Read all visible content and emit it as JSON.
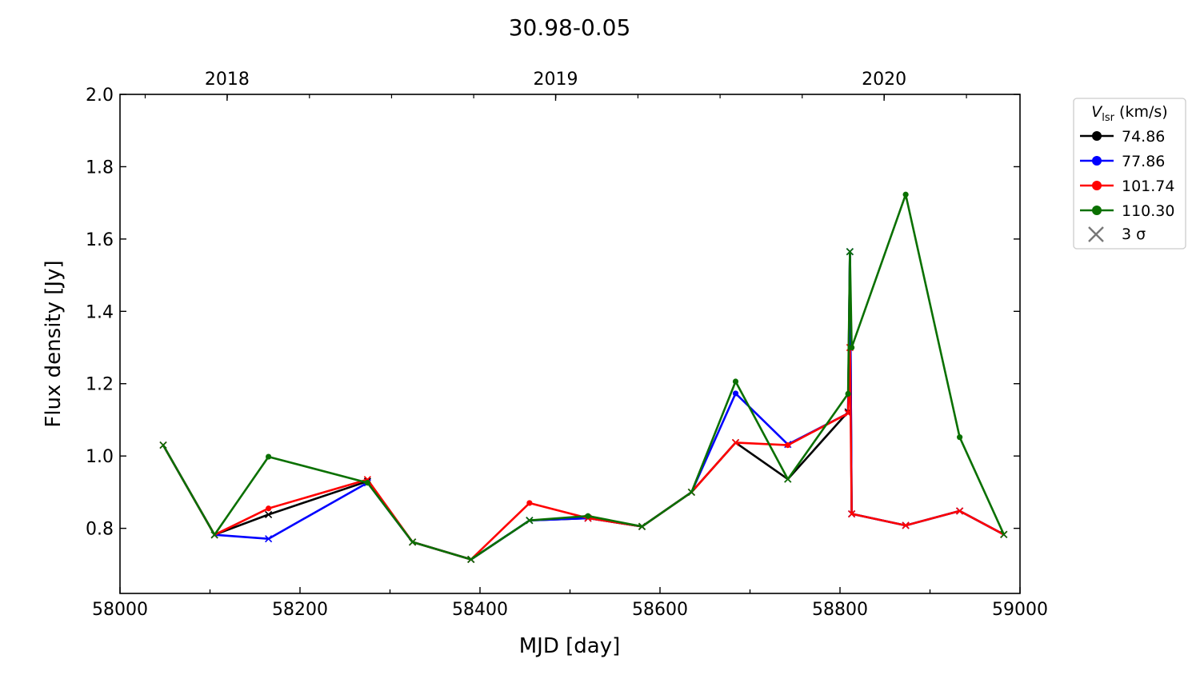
{
  "chart_data": {
    "type": "line",
    "title": "30.98-0.05",
    "xlabel": "MJD [day]",
    "ylabel": "Flux density [Jy]",
    "xlim": [
      58000,
      59000
    ],
    "ylim": [
      0.62,
      2.0
    ],
    "xticks": [
      58000,
      58200,
      58400,
      58600,
      58800,
      59000
    ],
    "yticks": [
      0.8,
      1.0,
      1.2,
      1.4,
      1.6,
      1.8,
      2.0
    ],
    "ytick_labels": [
      "0.8",
      "1.0",
      "1.2",
      "1.4",
      "1.6",
      "1.8",
      "2.0"
    ],
    "top_axis": {
      "ticks": [
        {
          "label": "2018",
          "mjd": 58119
        },
        {
          "label": "2019",
          "mjd": 58484
        },
        {
          "label": "2020",
          "mjd": 58849
        }
      ]
    },
    "grid": false,
    "legend": {
      "title_main": "V",
      "title_sub": "lsr",
      "title_unit": " (km/s)",
      "placement": "outside-right",
      "marker_label": "3 σ"
    },
    "series": [
      {
        "name": "74.86",
        "color": "#000000",
        "points": [
          [
            58048,
            1.03
          ],
          [
            58105,
            0.782
          ],
          [
            58165,
            0.838
          ],
          [
            58275,
            0.93
          ],
          [
            58325,
            0.762
          ],
          [
            58390,
            0.714
          ],
          [
            58455,
            0.822
          ],
          [
            58520,
            0.828
          ],
          [
            58580,
            0.805
          ],
          [
            58635,
            0.9
          ],
          [
            58684,
            1.037
          ],
          [
            58742,
            0.936
          ],
          [
            58809,
            1.122
          ],
          [
            58811,
            1.565
          ],
          [
            58813,
            0.84
          ],
          [
            58873,
            0.808
          ],
          [
            58933,
            0.848
          ],
          [
            58982,
            0.783
          ]
        ],
        "three_sigma": [
          58048,
          58105,
          58165,
          58275,
          58325,
          58390,
          58455,
          58520,
          58580,
          58635,
          58684,
          58742,
          58809,
          58811,
          58813,
          58873,
          58933,
          58982
        ]
      },
      {
        "name": "77.86",
        "color": "#0000ff",
        "points": [
          [
            58048,
            1.03
          ],
          [
            58105,
            0.782
          ],
          [
            58165,
            0.771
          ],
          [
            58275,
            0.926
          ],
          [
            58325,
            0.762
          ],
          [
            58390,
            0.714
          ],
          [
            58455,
            0.822
          ],
          [
            58520,
            0.828
          ],
          [
            58580,
            0.805
          ],
          [
            58635,
            0.9
          ],
          [
            58684,
            1.173
          ],
          [
            58742,
            1.032
          ],
          [
            58809,
            1.118
          ],
          [
            58811,
            1.565
          ],
          [
            58813,
            0.84
          ],
          [
            58873,
            0.808
          ],
          [
            58933,
            0.848
          ],
          [
            58982,
            0.783
          ]
        ],
        "three_sigma": [
          58048,
          58105,
          58165,
          58275,
          58325,
          58390,
          58455,
          58520,
          58580,
          58635,
          58742,
          58809,
          58811,
          58813,
          58873,
          58933,
          58982
        ]
      },
      {
        "name": "101.74",
        "color": "#ff0000",
        "points": [
          [
            58048,
            1.03
          ],
          [
            58105,
            0.782
          ],
          [
            58165,
            0.855
          ],
          [
            58275,
            0.935
          ],
          [
            58325,
            0.762
          ],
          [
            58390,
            0.714
          ],
          [
            58455,
            0.87
          ],
          [
            58520,
            0.828
          ],
          [
            58580,
            0.805
          ],
          [
            58635,
            0.9
          ],
          [
            58684,
            1.037
          ],
          [
            58742,
            1.03
          ],
          [
            58809,
            1.118
          ],
          [
            58811,
            1.3
          ],
          [
            58813,
            0.84
          ],
          [
            58873,
            0.808
          ],
          [
            58933,
            0.848
          ],
          [
            58982,
            0.783
          ]
        ],
        "three_sigma": [
          58048,
          58105,
          58275,
          58325,
          58390,
          58520,
          58580,
          58635,
          58684,
          58809,
          58811,
          58813,
          58873,
          58933,
          58982
        ]
      },
      {
        "name": "110.30",
        "color": "#0a7000",
        "points": [
          [
            58048,
            1.03
          ],
          [
            58105,
            0.782
          ],
          [
            58165,
            0.998
          ],
          [
            58275,
            0.926
          ],
          [
            58325,
            0.762
          ],
          [
            58390,
            0.714
          ],
          [
            58455,
            0.822
          ],
          [
            58520,
            0.834
          ],
          [
            58580,
            0.805
          ],
          [
            58635,
            0.9
          ],
          [
            58684,
            1.206
          ],
          [
            58742,
            0.936
          ],
          [
            58809,
            1.172
          ],
          [
            58811,
            1.565
          ],
          [
            58813,
            1.3
          ],
          [
            58873,
            1.723
          ],
          [
            58933,
            1.052
          ],
          [
            58982,
            0.783
          ]
        ],
        "three_sigma": [
          58048,
          58105,
          58325,
          58390,
          58455,
          58580,
          58635,
          58742,
          58811,
          58982
        ]
      }
    ]
  }
}
